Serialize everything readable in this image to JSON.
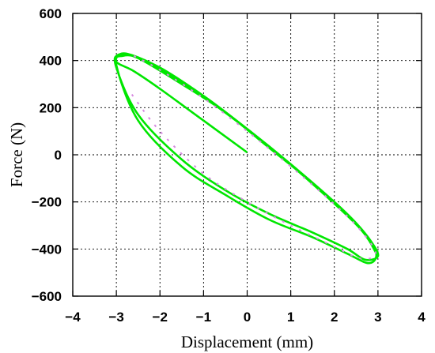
{
  "chart_data": {
    "type": "line",
    "title": "",
    "xlabel": "Displacement (mm)",
    "ylabel": "Force (N)",
    "xlim": [
      -4,
      4
    ],
    "ylim": [
      -600,
      600
    ],
    "xticks": [
      -4,
      -3,
      -2,
      -1,
      0,
      1,
      2,
      3,
      4
    ],
    "yticks": [
      -600,
      -400,
      -200,
      0,
      200,
      400,
      600
    ],
    "grid": true,
    "legend": "none",
    "colors": {
      "loop": "#00e600",
      "overlay": "#d68ae0"
    },
    "series": [
      {
        "points": [
          [
            0,
            10
          ],
          [
            -1,
            145
          ],
          [
            -2,
            280
          ],
          [
            -2.6,
            355
          ],
          [
            -3.0,
            395
          ],
          [
            -2.8,
            430
          ],
          [
            -2.0,
            370
          ],
          [
            -1.0,
            250
          ],
          [
            0,
            110
          ],
          [
            1.0,
            -40
          ],
          [
            2.0,
            -200
          ],
          [
            2.5,
            -290
          ],
          [
            2.85,
            -370
          ],
          [
            3.0,
            -430
          ],
          [
            2.7,
            -445
          ],
          [
            2.3,
            -400
          ],
          [
            1.5,
            -330
          ],
          [
            0.5,
            -250
          ],
          [
            -0.5,
            -150
          ],
          [
            -1.5,
            -20
          ],
          [
            -2.5,
            170
          ],
          [
            -3.0,
            370
          ],
          [
            -2.95,
            425
          ],
          [
            -2.5,
            410
          ],
          [
            -1.5,
            300
          ],
          [
            -0.5,
            180
          ],
          [
            0.5,
            30
          ],
          [
            1.5,
            -120
          ],
          [
            2.5,
            -290
          ],
          [
            2.95,
            -410
          ],
          [
            2.8,
            -460
          ],
          [
            2.3,
            -420
          ],
          [
            1.5,
            -350
          ],
          [
            0.5,
            -275
          ],
          [
            -0.5,
            -170
          ],
          [
            -1.5,
            -50
          ],
          [
            -2.5,
            145
          ],
          [
            -3.0,
            380
          ],
          [
            -2.85,
            420
          ],
          [
            -2.4,
            405
          ],
          [
            -1.4,
            295
          ],
          [
            -0.4,
            165
          ],
          [
            0.6,
            20
          ],
          [
            1.6,
            -140
          ],
          [
            2.6,
            -315
          ],
          [
            2.98,
            -425
          ]
        ]
      },
      {
        "points": [
          [
            -2.6,
            420
          ],
          [
            -2.0,
            360
          ],
          [
            -1.0,
            240
          ],
          [
            0.0,
            100
          ],
          [
            1.0,
            -50
          ],
          [
            2.0,
            -210
          ],
          [
            2.6,
            -320
          ],
          [
            2.95,
            -420
          ],
          [
            2.6,
            -440
          ],
          [
            2.0,
            -390
          ],
          [
            1.0,
            -300
          ],
          [
            0.0,
            -200
          ],
          [
            -1.0,
            -80
          ],
          [
            -2.0,
            100
          ],
          [
            -2.7,
            270
          ]
        ]
      }
    ]
  }
}
